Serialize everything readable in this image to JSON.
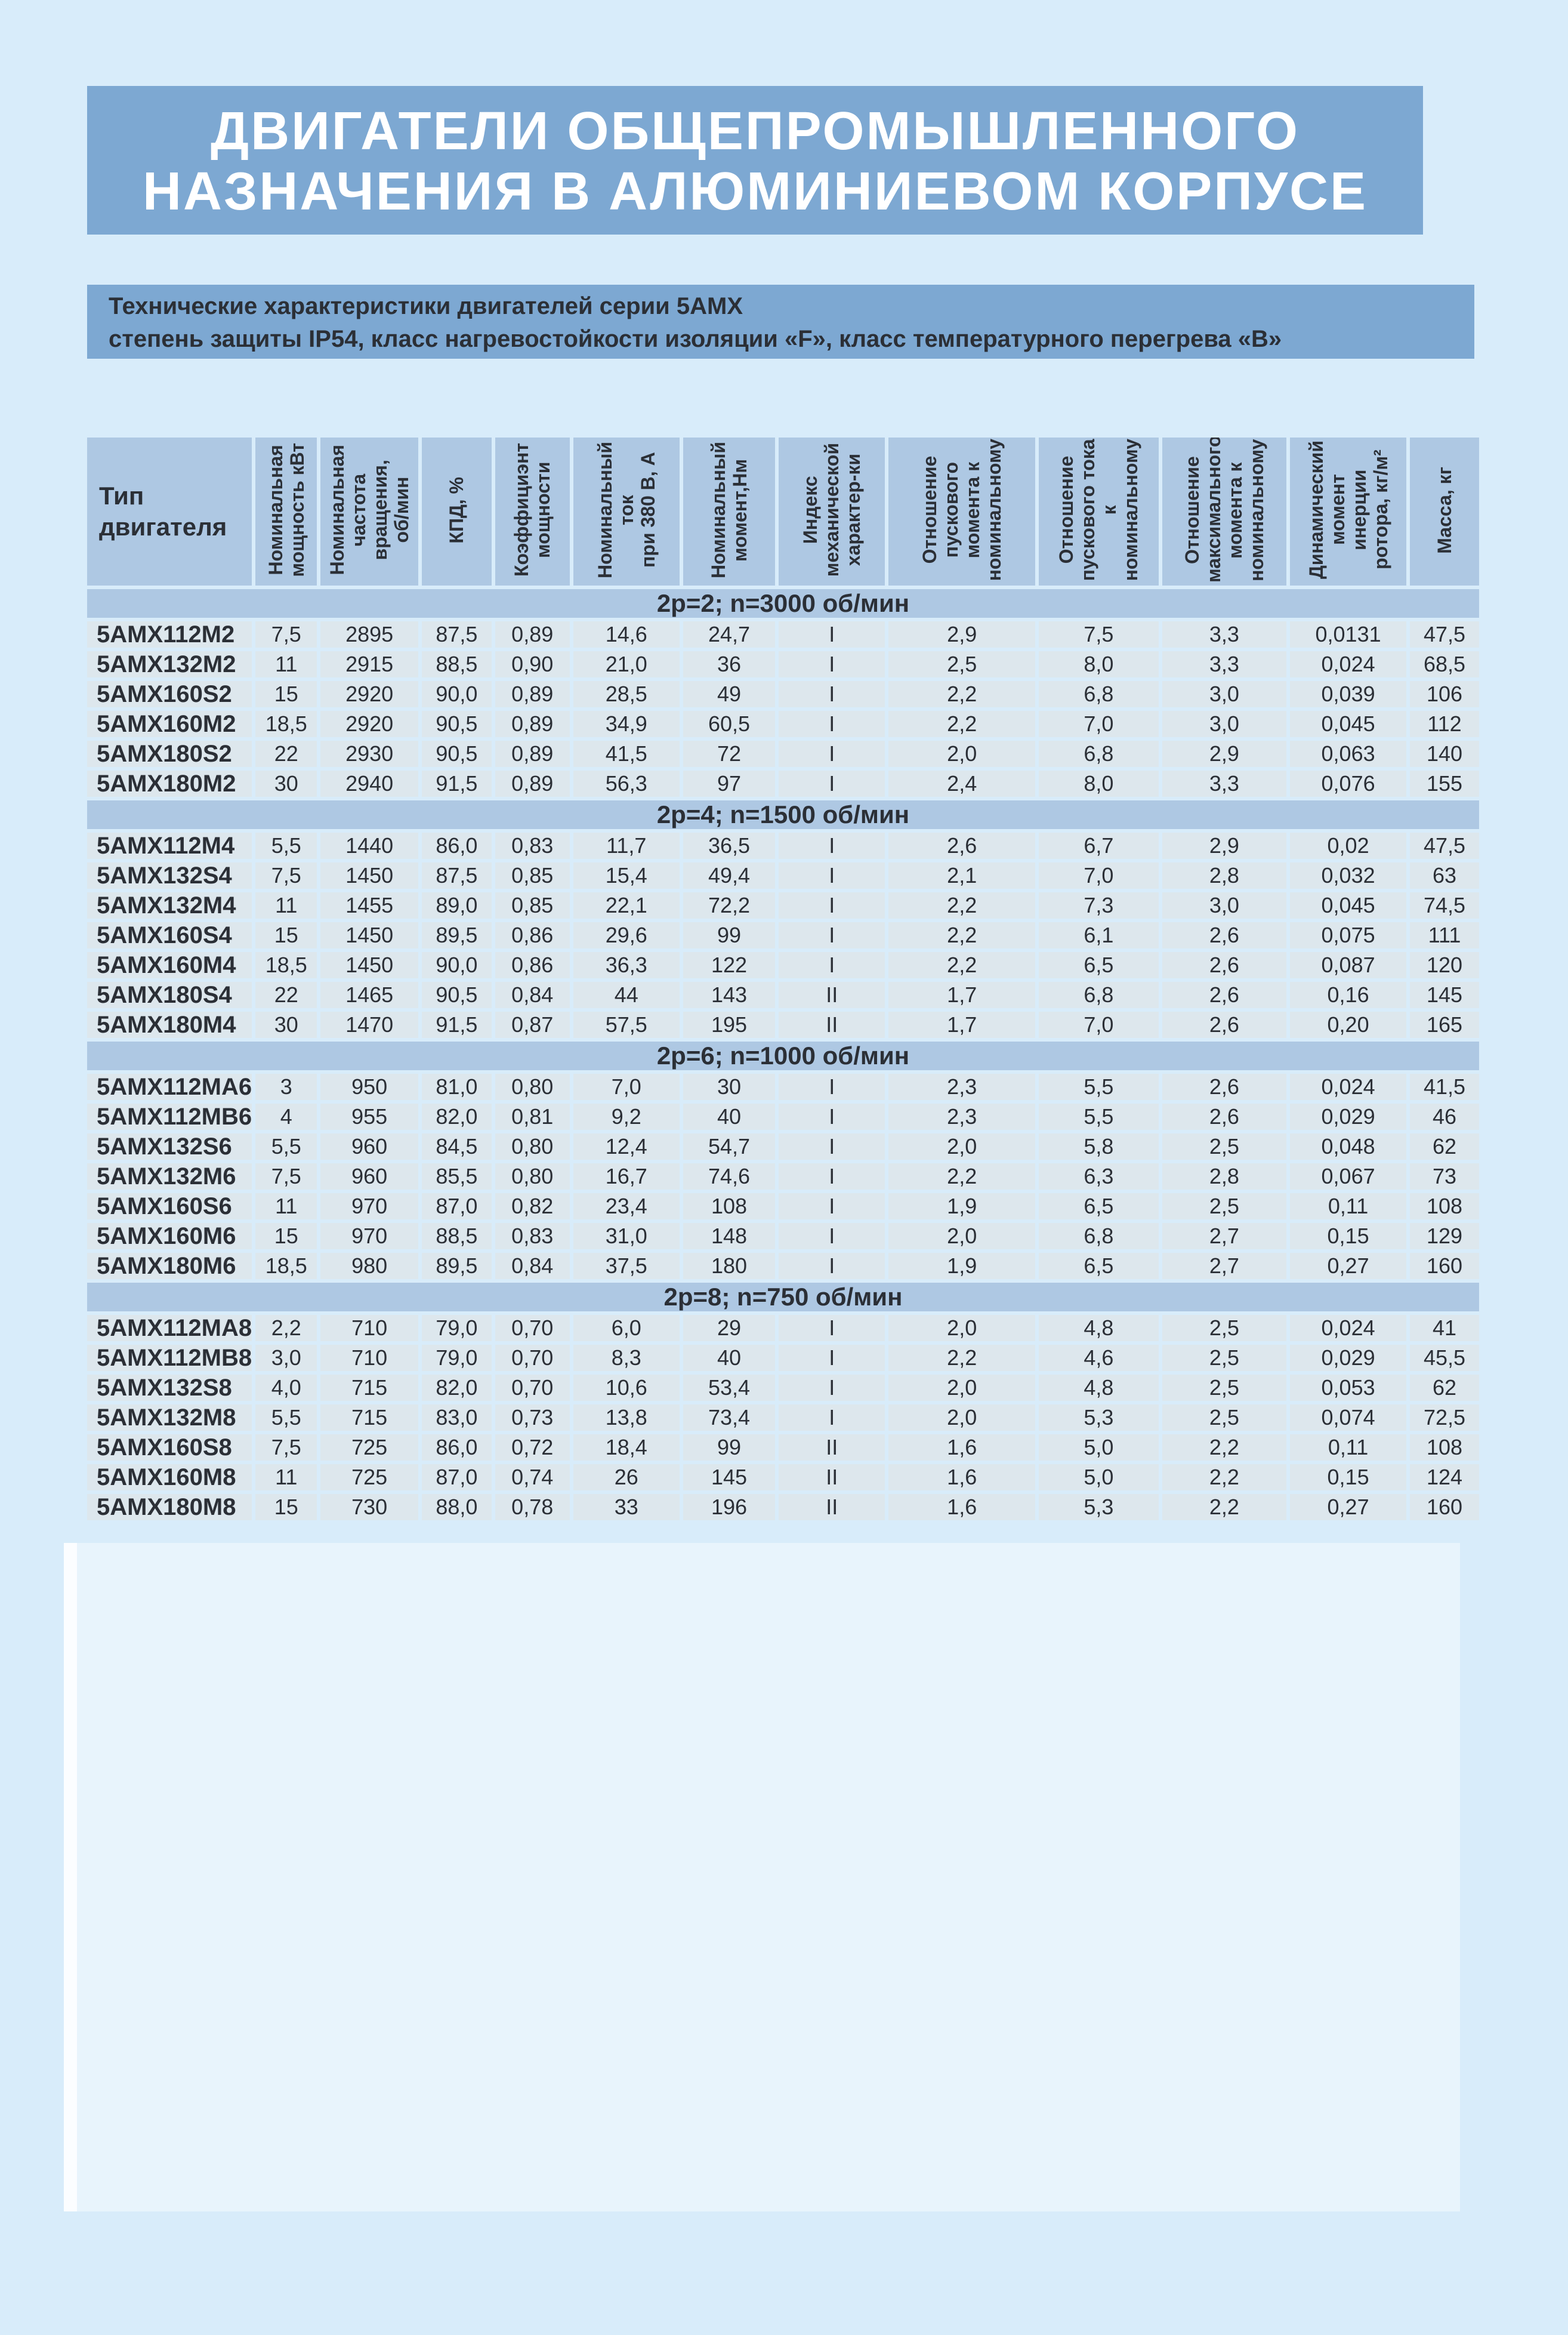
{
  "colors": {
    "page-bg": "#d8ecfa",
    "band-bg": "#7da8d2",
    "head-bg": "#aec8e3",
    "cell-bg": "#dde7ed",
    "ink": "#2b2f36",
    "panel-bg": "#e8f4fc"
  },
  "page": {
    "banner_line1": "ДВИГАТЕЛИ ОБЩЕПРОМЫШЛЕННОГО",
    "banner_line2": "НАЗНАЧЕНИЯ В АЛЮМИНИЕВОМ КОРПУСЕ",
    "subtitle_line1": "Технические характеристики двигателей серии 5АМХ",
    "subtitle_line2": "степень защиты IP54, класс нагревостойкости изоляции «F», класс температурного перегрева «В»"
  },
  "table": {
    "type_header": "Тип\nдвигателя",
    "column_headers": [
      "Номинальная\nмощность кВт",
      "Номинальная\nчастота\nвращения,\nоб/мин",
      "КПД, %",
      "Коэффициэнт\nмощности",
      "Номинальный\nток\nпри 380 В, А",
      "Номинальный\nмомент,Нм",
      "Индекс\nмеханической\nхарактер-ки",
      "Отношение\nпускового\nмомента к\nноминальному",
      "Отношение\nпускового тока\nк\nноминальному",
      "Отношение\nмаксимального\nмомента к\nноминальному",
      "Динамический\nмомент\nинерции\nротора, кг/м²",
      "Масса, кг"
    ],
    "sections": [
      {
        "title": "2р=2; n=3000 об/мин",
        "rows": [
          [
            "5АМХ112М2",
            "7,5",
            "2895",
            "87,5",
            "0,89",
            "14,6",
            "24,7",
            "I",
            "2,9",
            "7,5",
            "3,3",
            "0,0131",
            "47,5"
          ],
          [
            "5АМХ132М2",
            "11",
            "2915",
            "88,5",
            "0,90",
            "21,0",
            "36",
            "I",
            "2,5",
            "8,0",
            "3,3",
            "0,024",
            "68,5"
          ],
          [
            "5АМХ160S2",
            "15",
            "2920",
            "90,0",
            "0,89",
            "28,5",
            "49",
            "I",
            "2,2",
            "6,8",
            "3,0",
            "0,039",
            "106"
          ],
          [
            "5АМХ160М2",
            "18,5",
            "2920",
            "90,5",
            "0,89",
            "34,9",
            "60,5",
            "I",
            "2,2",
            "7,0",
            "3,0",
            "0,045",
            "112"
          ],
          [
            "5АМХ180S2",
            "22",
            "2930",
            "90,5",
            "0,89",
            "41,5",
            "72",
            "I",
            "2,0",
            "6,8",
            "2,9",
            "0,063",
            "140"
          ],
          [
            "5АМХ180М2",
            "30",
            "2940",
            "91,5",
            "0,89",
            "56,3",
            "97",
            "I",
            "2,4",
            "8,0",
            "3,3",
            "0,076",
            "155"
          ]
        ]
      },
      {
        "title": "2р=4; n=1500 об/мин",
        "rows": [
          [
            "5АМХ112М4",
            "5,5",
            "1440",
            "86,0",
            "0,83",
            "11,7",
            "36,5",
            "I",
            "2,6",
            "6,7",
            "2,9",
            "0,02",
            "47,5"
          ],
          [
            "5АМХ132S4",
            "7,5",
            "1450",
            "87,5",
            "0,85",
            "15,4",
            "49,4",
            "I",
            "2,1",
            "7,0",
            "2,8",
            "0,032",
            "63"
          ],
          [
            "5АМХ132М4",
            "11",
            "1455",
            "89,0",
            "0,85",
            "22,1",
            "72,2",
            "I",
            "2,2",
            "7,3",
            "3,0",
            "0,045",
            "74,5"
          ],
          [
            "5АМХ160S4",
            "15",
            "1450",
            "89,5",
            "0,86",
            "29,6",
            "99",
            "I",
            "2,2",
            "6,1",
            "2,6",
            "0,075",
            "111"
          ],
          [
            "5АМХ160М4",
            "18,5",
            "1450",
            "90,0",
            "0,86",
            "36,3",
            "122",
            "I",
            "2,2",
            "6,5",
            "2,6",
            "0,087",
            "120"
          ],
          [
            "5АМХ180S4",
            "22",
            "1465",
            "90,5",
            "0,84",
            "44",
            "143",
            "II",
            "1,7",
            "6,8",
            "2,6",
            "0,16",
            "145"
          ],
          [
            "5АМХ180М4",
            "30",
            "1470",
            "91,5",
            "0,87",
            "57,5",
            "195",
            "II",
            "1,7",
            "7,0",
            "2,6",
            "0,20",
            "165"
          ]
        ]
      },
      {
        "title": "2р=6; n=1000 об/мин",
        "rows": [
          [
            "5АМХ112МА6",
            "3",
            "950",
            "81,0",
            "0,80",
            "7,0",
            "30",
            "I",
            "2,3",
            "5,5",
            "2,6",
            "0,024",
            "41,5"
          ],
          [
            "5АМХ112МВ6",
            "4",
            "955",
            "82,0",
            "0,81",
            "9,2",
            "40",
            "I",
            "2,3",
            "5,5",
            "2,6",
            "0,029",
            "46"
          ],
          [
            "5АМХ132S6",
            "5,5",
            "960",
            "84,5",
            "0,80",
            "12,4",
            "54,7",
            "I",
            "2,0",
            "5,8",
            "2,5",
            "0,048",
            "62"
          ],
          [
            "5АМХ132М6",
            "7,5",
            "960",
            "85,5",
            "0,80",
            "16,7",
            "74,6",
            "I",
            "2,2",
            "6,3",
            "2,8",
            "0,067",
            "73"
          ],
          [
            "5АМХ160S6",
            "11",
            "970",
            "87,0",
            "0,82",
            "23,4",
            "108",
            "I",
            "1,9",
            "6,5",
            "2,5",
            "0,11",
            "108"
          ],
          [
            "5АМХ160М6",
            "15",
            "970",
            "88,5",
            "0,83",
            "31,0",
            "148",
            "I",
            "2,0",
            "6,8",
            "2,7",
            "0,15",
            "129"
          ],
          [
            "5АМХ180М6",
            "18,5",
            "980",
            "89,5",
            "0,84",
            "37,5",
            "180",
            "I",
            "1,9",
            "6,5",
            "2,7",
            "0,27",
            "160"
          ]
        ]
      },
      {
        "title": "2р=8; n=750 об/мин",
        "rows": [
          [
            "5АМХ112МА8",
            "2,2",
            "710",
            "79,0",
            "0,70",
            "6,0",
            "29",
            "I",
            "2,0",
            "4,8",
            "2,5",
            "0,024",
            "41"
          ],
          [
            "5АМХ112МВ8",
            "3,0",
            "710",
            "79,0",
            "0,70",
            "8,3",
            "40",
            "I",
            "2,2",
            "4,6",
            "2,5",
            "0,029",
            "45,5"
          ],
          [
            "5АМХ132S8",
            "4,0",
            "715",
            "82,0",
            "0,70",
            "10,6",
            "53,4",
            "I",
            "2,0",
            "4,8",
            "2,5",
            "0,053",
            "62"
          ],
          [
            "5АМХ132М8",
            "5,5",
            "715",
            "83,0",
            "0,73",
            "13,8",
            "73,4",
            "I",
            "2,0",
            "5,3",
            "2,5",
            "0,074",
            "72,5"
          ],
          [
            "5АМХ160S8",
            "7,5",
            "725",
            "86,0",
            "0,72",
            "18,4",
            "99",
            "II",
            "1,6",
            "5,0",
            "2,2",
            "0,11",
            "108"
          ],
          [
            "5АМХ160М8",
            "11",
            "725",
            "87,0",
            "0,74",
            "26",
            "145",
            "II",
            "1,6",
            "5,0",
            "2,2",
            "0,15",
            "124"
          ],
          [
            "5АМХ180М8",
            "15",
            "730",
            "88,0",
            "0,78",
            "33",
            "196",
            "II",
            "1,6",
            "5,3",
            "2,2",
            "0,27",
            "160"
          ]
        ]
      }
    ]
  }
}
